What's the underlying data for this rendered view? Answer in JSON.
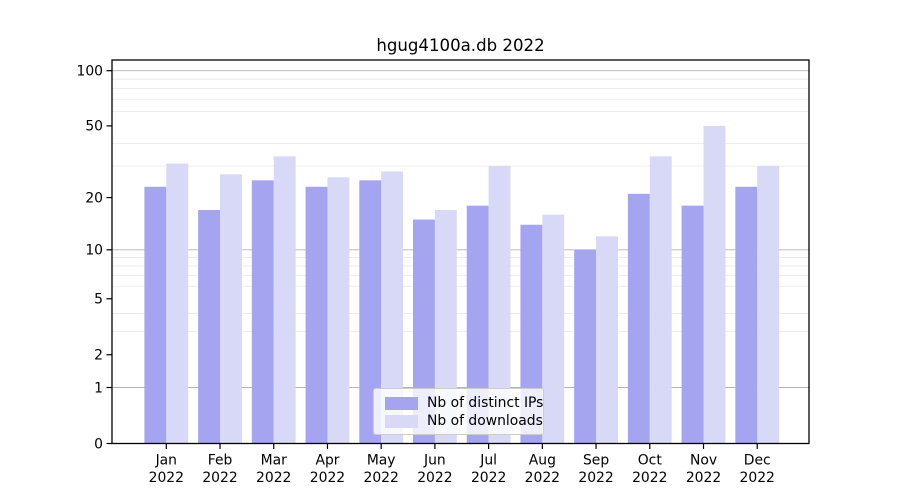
{
  "title": "hgug4100a.db 2022",
  "chart_data": {
    "type": "bar",
    "title": "hgug4100a.db 2022",
    "categories": [
      "Jan",
      "Feb",
      "Mar",
      "Apr",
      "May",
      "Jun",
      "Jul",
      "Aug",
      "Sep",
      "Oct",
      "Nov",
      "Dec"
    ],
    "year_label": "2022",
    "series": [
      {
        "name": "Nb of distinct IPs",
        "color": "#a4a4f0",
        "values": [
          23,
          17,
          25,
          23,
          25,
          15,
          18,
          14,
          10,
          21,
          18,
          23
        ]
      },
      {
        "name": "Nb of downloads",
        "color": "#d8d8f7",
        "values": [
          31,
          27,
          34,
          26,
          28,
          17,
          30,
          16,
          12,
          34,
          50,
          30
        ]
      }
    ],
    "yscale": "log10(1+y)",
    "ylim": [
      0,
      114
    ],
    "yticks": [
      100,
      50,
      20,
      10,
      5,
      2,
      1,
      0
    ],
    "major_gridlines": [
      1,
      10,
      100
    ],
    "minor_gridlines": [
      3,
      4,
      6,
      7,
      8,
      9,
      30,
      40,
      60,
      70,
      80,
      90
    ],
    "grid": true,
    "legend_position": "inside bottom-center"
  },
  "colors": {
    "background": "#ffffff",
    "spine": "#000000",
    "tick_text": "#000000",
    "major_grid": "#b4b4b4",
    "minor_grid": "#ebebeb",
    "legend_border": "#cccccc"
  }
}
